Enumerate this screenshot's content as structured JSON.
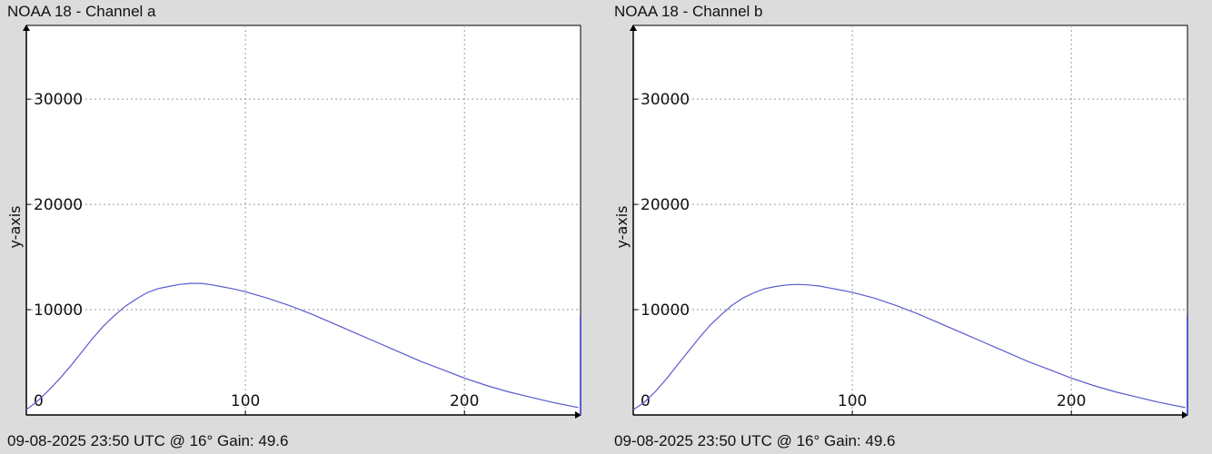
{
  "chart_data": [
    {
      "type": "line",
      "title": "NOAA 18 - Channel a",
      "footer": "09-08-2025 23:50 UTC @ 16° Gain: 49.6",
      "xlabel": "",
      "ylabel": "y-axis",
      "xlim": [
        0,
        253
      ],
      "ylim": [
        0,
        37000
      ],
      "x_ticks": [
        0,
        100,
        200
      ],
      "y_ticks": [
        10000,
        20000,
        30000
      ],
      "grid": true,
      "color": "#5a5acd",
      "series": [
        {
          "x": [
            0,
            5,
            10,
            15,
            20,
            25,
            30,
            35,
            40,
            45,
            50,
            55,
            60,
            65,
            70,
            75,
            80,
            85,
            90,
            95,
            100,
            110,
            120,
            130,
            140,
            150,
            160,
            170,
            180,
            190,
            200,
            210,
            220,
            230,
            240,
            252
          ],
          "values": [
            500,
            1300,
            2300,
            3400,
            4600,
            5900,
            7200,
            8400,
            9400,
            10300,
            11000,
            11600,
            12000,
            12200,
            12400,
            12500,
            12500,
            12350,
            12150,
            11950,
            11700,
            11100,
            10400,
            9600,
            8700,
            7800,
            6900,
            6000,
            5100,
            4300,
            3500,
            2800,
            2200,
            1700,
            1200,
            700
          ]
        },
        {
          "x": [
            253,
            253
          ],
          "values": [
            0,
            9400
          ]
        }
      ]
    },
    {
      "type": "line",
      "title": "NOAA 18 - Channel b",
      "footer": "09-08-2025 23:50 UTC @ 16° Gain: 49.6",
      "xlabel": "",
      "ylabel": "y-axis",
      "xlim": [
        0,
        253
      ],
      "ylim": [
        0,
        37000
      ],
      "x_ticks": [
        0,
        100,
        200
      ],
      "y_ticks": [
        10000,
        20000,
        30000
      ],
      "grid": true,
      "color": "#5a5acd",
      "series": [
        {
          "x": [
            0,
            5,
            10,
            15,
            20,
            25,
            30,
            35,
            40,
            45,
            50,
            55,
            60,
            65,
            70,
            75,
            80,
            85,
            90,
            95,
            100,
            110,
            120,
            130,
            140,
            150,
            160,
            170,
            180,
            190,
            200,
            210,
            220,
            230,
            240,
            252
          ],
          "values": [
            500,
            1200,
            2200,
            3400,
            4700,
            6000,
            7300,
            8500,
            9500,
            10400,
            11100,
            11600,
            12000,
            12200,
            12350,
            12400,
            12350,
            12250,
            12050,
            11850,
            11650,
            11100,
            10400,
            9600,
            8700,
            7800,
            6900,
            6000,
            5100,
            4300,
            3500,
            2800,
            2200,
            1700,
            1200,
            700
          ]
        },
        {
          "x": [
            253,
            253
          ],
          "values": [
            0,
            9400
          ]
        }
      ]
    }
  ]
}
